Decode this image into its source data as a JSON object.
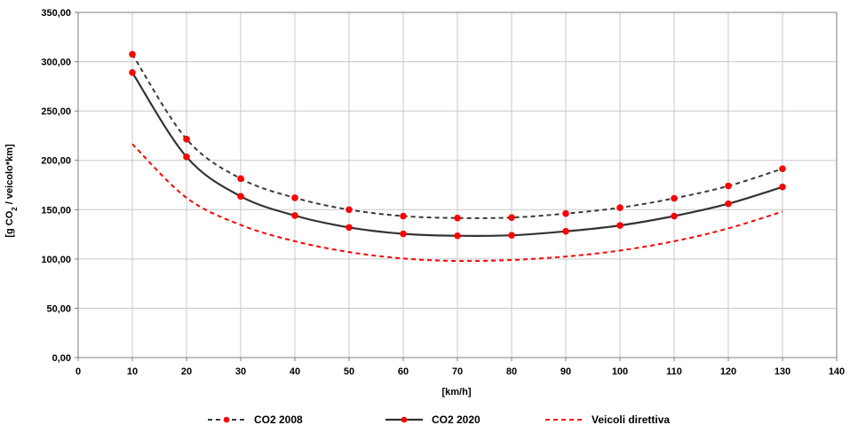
{
  "chart_data": {
    "type": "line",
    "title": "",
    "xlabel": "[km/h]",
    "ylabel": {
      "prefix": "[g CO",
      "subscript": "2",
      "suffix": " / veicolo*km]"
    },
    "xlim": [
      0,
      140
    ],
    "ylim": [
      0,
      350
    ],
    "x_ticks": [
      "0",
      "10",
      "20",
      "30",
      "40",
      "50",
      "60",
      "70",
      "80",
      "90",
      "100",
      "110",
      "120",
      "130",
      "140"
    ],
    "y_ticks": [
      "0,00",
      "50,00",
      "100,00",
      "150,00",
      "200,00",
      "250,00",
      "300,00",
      "350,00"
    ],
    "x_tick_values": [
      0,
      10,
      20,
      30,
      40,
      50,
      60,
      70,
      80,
      90,
      100,
      110,
      120,
      130,
      140
    ],
    "y_tick_values": [
      0,
      50,
      100,
      150,
      200,
      250,
      300,
      350
    ],
    "grid": true,
    "legend_position": "bottom",
    "x": [
      10,
      20,
      30,
      40,
      50,
      60,
      70,
      80,
      90,
      100,
      110,
      120,
      130
    ],
    "series": [
      {
        "name": "CO2 2008",
        "color": "#3a3a3a",
        "marker_color": "#ff0000",
        "style": "dashed",
        "markers": true,
        "values": [
          307.5,
          221.5,
          181.5,
          162.0,
          150.0,
          143.5,
          141.5,
          142.0,
          146.0,
          152.0,
          161.5,
          174.0,
          191.5
        ]
      },
      {
        "name": "CO2 2020",
        "color": "#333333",
        "marker_color": "#ff0000",
        "style": "solid",
        "markers": true,
        "values": [
          289.0,
          203.5,
          163.5,
          144.0,
          132.0,
          125.5,
          123.5,
          124.0,
          128.0,
          134.0,
          143.5,
          156.0,
          173.0
        ]
      },
      {
        "name": "Veicoli direttiva",
        "color": "#ff0000",
        "style": "dashed",
        "markers": false,
        "values": [
          216.5,
          162.0,
          134.5,
          118.0,
          107.0,
          100.5,
          98.0,
          99.0,
          102.5,
          108.5,
          118.0,
          131.0,
          148.0
        ]
      }
    ]
  }
}
